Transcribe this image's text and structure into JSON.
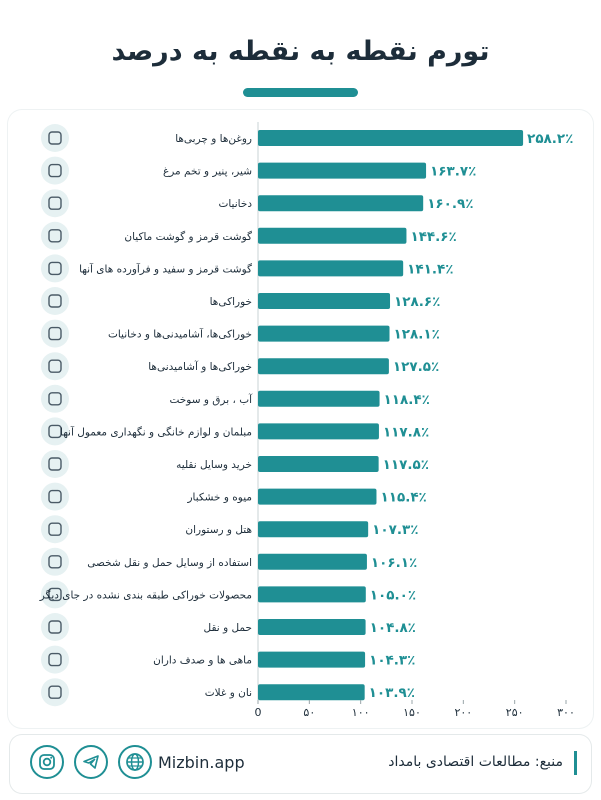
{
  "header": {
    "title": "تورم نقطه به نقطه به درصد"
  },
  "colors": {
    "accent": "#1f8f94",
    "text": "#1d2d3a",
    "icon_bg": "#e6f1f2",
    "grid": "#dfe5e6"
  },
  "chart_data": {
    "type": "bar",
    "orientation": "horizontal",
    "xlim": [
      0,
      300
    ],
    "ticks": [
      0,
      50,
      100,
      150,
      200,
      250,
      300
    ],
    "tick_labels": [
      "0",
      "۵۰",
      "۱۰۰",
      "۱۵۰",
      "۲۰۰",
      "۲۵۰",
      "۳۰۰"
    ],
    "categories": [
      "روغن‌ها و چربی‌ها",
      "شیر، پنیر و تخم مرغ",
      "دخانیات",
      "گوشت قرمز و گوشت ماکیان",
      "گوشت قرمز و سفید و فرآورده های آنها",
      "خوراکی‌ها",
      "خوراکی‌ها، آشامیدنی‌ها و دخانیات",
      "خوراکی‌ها و آشامیدنی‌ها",
      "آب ، برق و سوخت",
      "مبلمان و لوازم خانگی و نگهداری معمول آنها",
      "خرید وسایل نقلیه",
      "میوه و خشکبار",
      "هتل و رستوران",
      "استفاده از وسایل حمل و نقل شخصی",
      "محصولات خوراکی طبقه بندی نشده در جای دیگر",
      "حمل و نقل",
      "ماهی ها و صدف داران",
      "نان و غلات"
    ],
    "values": [
      258.2,
      163.7,
      160.9,
      144.6,
      141.4,
      128.6,
      128.1,
      127.5,
      118.4,
      117.8,
      117.5,
      115.4,
      107.3,
      106.1,
      105.0,
      104.8,
      104.3,
      103.9
    ],
    "value_labels": [
      "۲۵۸.۲٪",
      "۱۶۳.۷٪",
      "۱۶۰.۹٪",
      "۱۴۴.۶٪",
      "۱۴۱.۴٪",
      "۱۲۸.۶٪",
      "۱۲۸.۱٪",
      "۱۲۷.۵٪",
      "۱۱۸.۴٪",
      "۱۱۷.۸٪",
      "۱۱۷.۵٪",
      "۱۱۵.۴٪",
      "۱۰۷.۳٪",
      "۱۰۶.۱٪",
      "۱۰۵.۰٪",
      "۱۰۴.۸٪",
      "۱۰۴.۳٪",
      "۱۰۳.۹٪"
    ],
    "icons": [
      "oil-bottle-icon",
      "milk-egg-icon",
      "tobacco-icon",
      "meat-icon",
      "meat-bowl-icon",
      "food-icon",
      "basket-icon",
      "cutlery-icon",
      "water-power-icon",
      "house-icon",
      "shirt-icon",
      "fruit-kit-icon",
      "hotel-icon",
      "bus-icon",
      "car-icon",
      "truck-icon",
      "fish-icon",
      "wheat-icon"
    ],
    "grid": false
  },
  "footer": {
    "site": "Mizbin.app",
    "source": "منبع: مطالعات اقتصادی بامداد",
    "social_icons": [
      "instagram-icon",
      "telegram-icon",
      "globe-icon"
    ]
  }
}
